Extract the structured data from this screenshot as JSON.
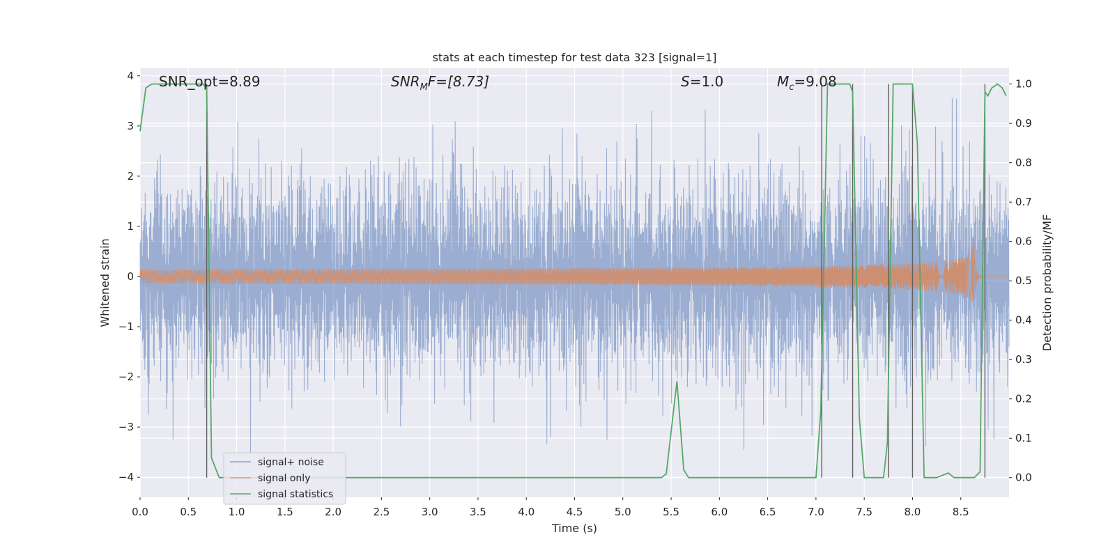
{
  "chart_data": {
    "type": "line",
    "title": "stats at each timestep for test data 323 [signal=1]",
    "xlabel": "Time (s)",
    "ylabel": "Whitened strain",
    "ylabel_right": "Detection probability/MF",
    "xlim": [
      0.0,
      9.0
    ],
    "ylim": [
      -4.4,
      4.15
    ],
    "ylim_right": [
      -0.05,
      1.04
    ],
    "x_ticks": [
      0.0,
      0.5,
      1.0,
      1.5,
      2.0,
      2.5,
      3.0,
      3.5,
      4.0,
      4.5,
      5.0,
      5.5,
      6.0,
      6.5,
      7.0,
      7.5,
      8.0,
      8.5
    ],
    "x_tick_labels": [
      "0.0",
      "0.5",
      "1.0",
      "1.5",
      "2.0",
      "2.5",
      "3.0",
      "3.5",
      "4.0",
      "4.5",
      "5.0",
      "5.5",
      "6.0",
      "6.5",
      "7.0",
      "7.5",
      "8.0",
      "8.5"
    ],
    "y_ticks": [
      -4,
      -3,
      -2,
      -1,
      0,
      1,
      2,
      3,
      4
    ],
    "y_tick_labels": [
      "−4",
      "−3",
      "−2",
      "−1",
      "0",
      "1",
      "2",
      "3",
      "4"
    ],
    "y_ticks_right": [
      0.0,
      0.1,
      0.2,
      0.3,
      0.4,
      0.5,
      0.6,
      0.7,
      0.8,
      0.9,
      1.0
    ],
    "y_tick_labels_right": [
      "0.0",
      "0.1",
      "0.2",
      "0.3",
      "0.4",
      "0.5",
      "0.6",
      "0.7",
      "0.8",
      "0.9",
      "1.0"
    ],
    "grid": true,
    "legend_position": "lower-left",
    "annotations": {
      "snr_opt": "SNR_opt=8.89",
      "snr_mf_label": "SNR",
      "snr_mf_sub": "M",
      "snr_mf_rest": "F=[8.73]",
      "s_label": "S",
      "s_rest": "=1.0",
      "mc_label": "M",
      "mc_sub": "c",
      "mc_rest": "=9.08"
    },
    "series": [
      {
        "name": "signal+ noise",
        "color": "#4c72b0",
        "axis": "left",
        "kind": "noise",
        "typical_amplitude": 1.5,
        "max_abs": 3.6
      },
      {
        "name": "signal only",
        "color": "#dd8452",
        "axis": "left",
        "kind": "chirp",
        "merger_time": 8.65,
        "peak_amplitude": 0.95
      },
      {
        "name": "signal statistics",
        "color": "#55a868",
        "axis": "right",
        "x": [
          0.0,
          0.06,
          0.12,
          0.3,
          0.5,
          0.65,
          0.69,
          0.74,
          0.82,
          1.0,
          2.0,
          3.0,
          4.0,
          5.0,
          5.4,
          5.45,
          5.56,
          5.63,
          5.68,
          6.0,
          6.5,
          6.6,
          7.0,
          7.05,
          7.12,
          7.2,
          7.35,
          7.38,
          7.45,
          7.5,
          7.7,
          7.74,
          7.8,
          7.87,
          8.0,
          8.05,
          8.12,
          8.15,
          8.25,
          8.3,
          8.37,
          8.43,
          8.5,
          8.64,
          8.7,
          8.75,
          8.78,
          8.82,
          8.88,
          8.93,
          8.97
        ],
        "y": [
          0.88,
          0.99,
          1.0,
          1.0,
          1.0,
          1.0,
          0.99,
          0.05,
          0.0,
          0.0,
          0.0,
          0.0,
          0.0,
          0.0,
          0.0,
          0.01,
          0.245,
          0.02,
          0.0,
          0.0,
          0.0,
          0.0,
          0.0,
          0.17,
          1.0,
          1.0,
          1.0,
          0.98,
          0.15,
          0.0,
          0.0,
          0.09,
          1.0,
          1.0,
          1.0,
          0.85,
          0.0,
          0.0,
          0.0,
          0.005,
          0.012,
          0.0,
          0.0,
          0.0,
          0.015,
          0.98,
          0.97,
          0.99,
          1.0,
          0.99,
          0.97
        ]
      }
    ],
    "vertical_markers": {
      "color": "#606060",
      "x": [
        0.69,
        7.06,
        7.38,
        7.75,
        8.0,
        8.75
      ],
      "y_right": [
        [
          0.0,
          1.0
        ],
        [
          0.0,
          1.0
        ],
        [
          0.0,
          1.0
        ],
        [
          0.0,
          1.0
        ],
        [
          0.0,
          1.0
        ],
        [
          0.0,
          1.0
        ]
      ]
    },
    "background_color": "#eaeaf2",
    "grid_color": "#ffffff"
  }
}
